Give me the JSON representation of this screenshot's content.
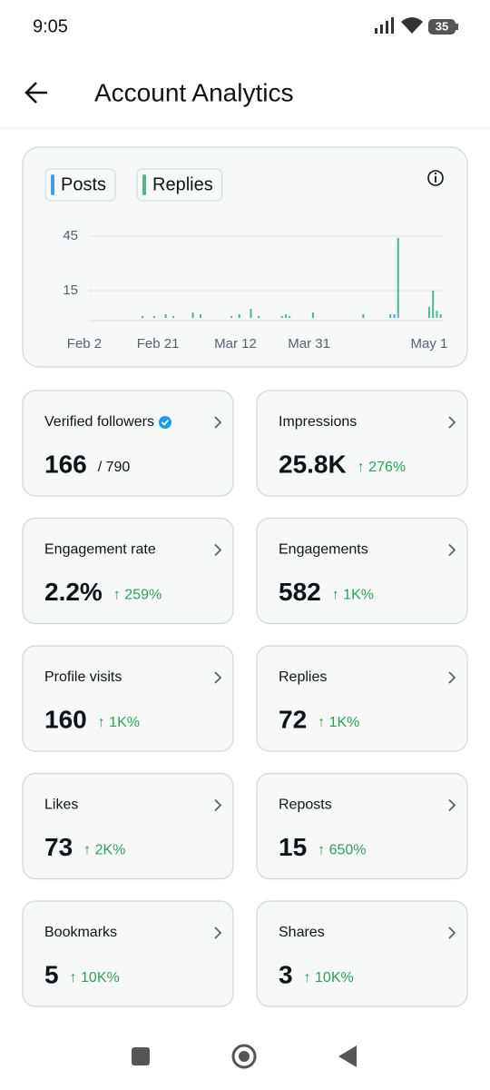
{
  "status_bar": {
    "time": "9:05",
    "battery": "35"
  },
  "header": {
    "title": "Account Analytics"
  },
  "chart_data": {
    "type": "bar",
    "series": [
      {
        "name": "Posts",
        "color": "#4a99e9",
        "x": [
          80
        ],
        "values": [
          2
        ]
      },
      {
        "name": "Replies",
        "color": "#4fb58a",
        "x": [
          15,
          18,
          21,
          23,
          28,
          30,
          38,
          40,
          43,
          45,
          51,
          52,
          53,
          59,
          72,
          79,
          81,
          89,
          90,
          91,
          92
        ],
        "values": [
          1,
          1,
          2,
          1,
          3,
          2,
          1,
          2,
          5,
          1,
          1,
          2,
          1,
          3,
          2,
          2,
          44,
          6,
          15,
          4,
          2
        ]
      }
    ],
    "xlim": [
      -1,
      93
    ],
    "xticks": [
      {
        "value": 0,
        "label": "Feb 2"
      },
      {
        "value": 19,
        "label": "Feb 21"
      },
      {
        "value": 39,
        "label": "Mar 12"
      },
      {
        "value": 58,
        "label": "Mar 31"
      },
      {
        "value": 89,
        "label": "May 1"
      }
    ],
    "ylim": [
      0,
      48
    ],
    "yticks": [
      15,
      45
    ],
    "grid": true
  },
  "cards": [
    {
      "label": "Verified followers",
      "value": "166",
      "change": "/ 790",
      "verified": true
    },
    {
      "label": "Impressions",
      "value": "25.8K",
      "change": "↑ 276%"
    },
    {
      "label": "Engagement rate",
      "value": "2.2%",
      "change": "↑ 259%"
    },
    {
      "label": "Engagements",
      "value": "582",
      "change": "↑ 1K%"
    },
    {
      "label": "Profile visits",
      "value": "160",
      "change": "↑ 1K%"
    },
    {
      "label": "Replies",
      "value": "72",
      "change": "↑ 1K%"
    },
    {
      "label": "Likes",
      "value": "73",
      "change": "↑ 2K%"
    },
    {
      "label": "Reposts",
      "value": "15",
      "change": "↑ 650%"
    },
    {
      "label": "Bookmarks",
      "value": "5",
      "change": "↑ 10K%"
    },
    {
      "label": "Shares",
      "value": "3",
      "change": "↑ 10K%"
    }
  ]
}
